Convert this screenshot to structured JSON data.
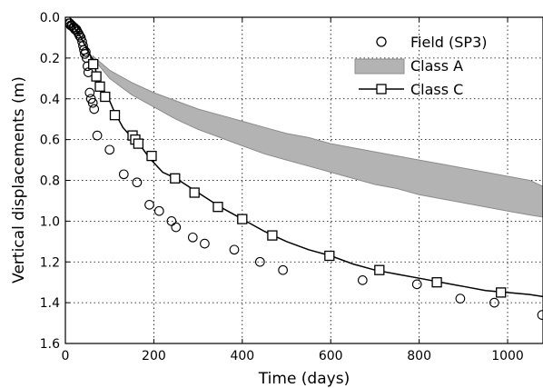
{
  "chart_data": {
    "type": "line",
    "xlabel": "Time (days)",
    "ylabel": "Vertical displacements (m)",
    "xlim": [
      0,
      1080
    ],
    "ylim": [
      0,
      1.6
    ],
    "y_inverted": true,
    "grid": true,
    "legend_position": "top-right",
    "x_ticks": [
      "0",
      "200",
      "400",
      "600",
      "800",
      "1000"
    ],
    "y_ticks": [
      "0.0",
      "0.2",
      "0.4",
      "0.6",
      "0.8",
      "1.0",
      "1.2",
      "1.4",
      "1.6"
    ],
    "series": [
      {
        "name": "Field (SP3)",
        "marker": "circle-open",
        "points": [
          [
            2,
            0.01
          ],
          [
            5,
            0.02
          ],
          [
            8,
            0.03
          ],
          [
            10,
            0.03
          ],
          [
            12,
            0.04
          ],
          [
            15,
            0.04
          ],
          [
            18,
            0.05
          ],
          [
            20,
            0.05
          ],
          [
            22,
            0.06
          ],
          [
            25,
            0.06
          ],
          [
            27,
            0.07
          ],
          [
            30,
            0.08
          ],
          [
            32,
            0.09
          ],
          [
            35,
            0.1
          ],
          [
            38,
            0.12
          ],
          [
            40,
            0.14
          ],
          [
            42,
            0.16
          ],
          [
            44,
            0.18
          ],
          [
            46,
            0.17
          ],
          [
            48,
            0.2
          ],
          [
            50,
            0.24
          ],
          [
            52,
            0.27
          ],
          [
            55,
            0.37
          ],
          [
            58,
            0.4
          ],
          [
            62,
            0.42
          ],
          [
            65,
            0.45
          ],
          [
            72,
            0.58
          ],
          [
            100,
            0.65
          ],
          [
            132,
            0.77
          ],
          [
            162,
            0.81
          ],
          [
            190,
            0.92
          ],
          [
            212,
            0.95
          ],
          [
            240,
            1.0
          ],
          [
            250,
            1.03
          ],
          [
            288,
            1.08
          ],
          [
            315,
            1.11
          ],
          [
            382,
            1.14
          ],
          [
            440,
            1.2
          ],
          [
            492,
            1.24
          ],
          [
            672,
            1.29
          ],
          [
            795,
            1.31
          ],
          [
            893,
            1.38
          ],
          [
            970,
            1.4
          ],
          [
            1078,
            1.46
          ]
        ]
      },
      {
        "name": "Class A",
        "type": "band",
        "color": "#b3b3b3",
        "edge_color": "#8c8c8c",
        "x": [
          62,
          100,
          150,
          200,
          250,
          300,
          350,
          400,
          450,
          500,
          550,
          600,
          650,
          700,
          750,
          800,
          850,
          900,
          950,
          1000,
          1050,
          1080
        ],
        "lower": [
          0.19,
          0.26,
          0.32,
          0.37,
          0.41,
          0.45,
          0.48,
          0.51,
          0.54,
          0.57,
          0.59,
          0.62,
          0.64,
          0.66,
          0.68,
          0.7,
          0.72,
          0.74,
          0.76,
          0.78,
          0.8,
          0.83
        ],
        "upper": [
          0.2,
          0.3,
          0.38,
          0.44,
          0.5,
          0.55,
          0.59,
          0.63,
          0.67,
          0.7,
          0.73,
          0.76,
          0.79,
          0.82,
          0.84,
          0.87,
          0.89,
          0.91,
          0.93,
          0.95,
          0.97,
          0.98
        ]
      },
      {
        "name": "Class C",
        "marker": "square-open",
        "color": "#000000",
        "x": [
          10,
          20,
          30,
          40,
          50,
          60,
          64,
          66,
          68,
          70,
          72,
          80,
          90,
          100,
          110,
          130,
          150,
          160,
          170,
          190,
          220,
          250,
          300,
          350,
          400,
          450,
          500,
          550,
          600,
          650,
          700,
          750,
          800,
          850,
          900,
          950,
          1000,
          1050,
          1080
        ],
        "y": [
          0.02,
          0.05,
          0.08,
          0.12,
          0.16,
          0.2,
          0.21,
          0.23,
          0.25,
          0.28,
          0.3,
          0.33,
          0.37,
          0.41,
          0.46,
          0.54,
          0.59,
          0.61,
          0.63,
          0.69,
          0.76,
          0.79,
          0.86,
          0.93,
          0.99,
          1.05,
          1.1,
          1.14,
          1.17,
          1.21,
          1.24,
          1.26,
          1.28,
          1.3,
          1.32,
          1.34,
          1.35,
          1.36,
          1.37
        ],
        "marker_points": [
          [
            63,
            0.23
          ],
          [
            70,
            0.29
          ],
          [
            78,
            0.34
          ],
          [
            90,
            0.39
          ],
          [
            112,
            0.48
          ],
          [
            152,
            0.58
          ],
          [
            158,
            0.6
          ],
          [
            165,
            0.62
          ],
          [
            195,
            0.68
          ],
          [
            248,
            0.79
          ],
          [
            292,
            0.86
          ],
          [
            345,
            0.93
          ],
          [
            400,
            0.99
          ],
          [
            468,
            1.07
          ],
          [
            597,
            1.17
          ],
          [
            710,
            1.24
          ],
          [
            840,
            1.3
          ],
          [
            985,
            1.35
          ]
        ]
      }
    ]
  }
}
